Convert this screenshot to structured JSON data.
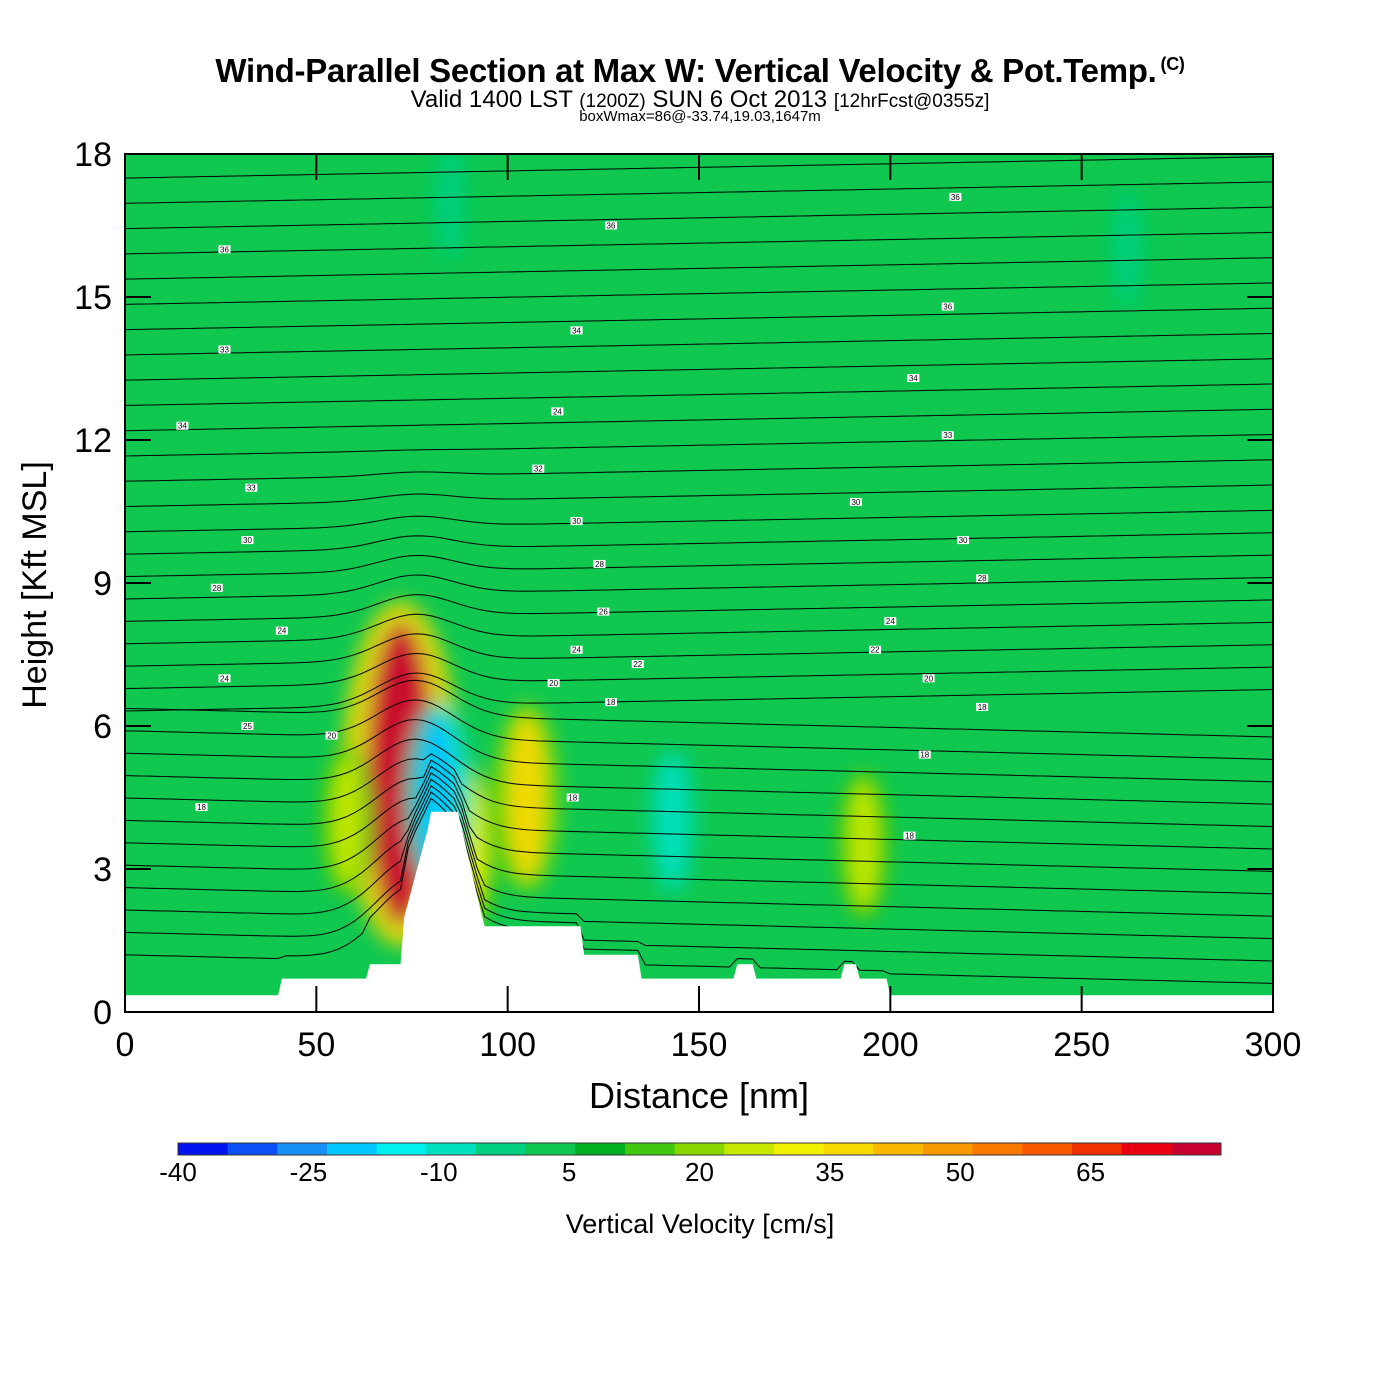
{
  "header": {
    "title": "Wind-Parallel Section at Max W: Vertical Velocity & Pot.Temp.",
    "copyright": "(C)",
    "valid_prefix": "Valid 1400 LST",
    "valid_z": "(1200Z)",
    "valid_date": "SUN 6 Oct 2013",
    "valid_fcst": "[12hrFcst@0355z]",
    "box_wmax": "boxWmax=86@-33.74,19.03,1647m"
  },
  "chart_data": {
    "type": "heatmap",
    "title": "Wind-Parallel Section at Max W: Vertical Velocity & Pot.Temp.",
    "xlabel": "Distance [nm]",
    "ylabel": "Height [Kft MSL]",
    "xlim": [
      0,
      300
    ],
    "ylim": [
      0,
      18
    ],
    "xticks": [
      0,
      50,
      100,
      150,
      200,
      250,
      300
    ],
    "yticks": [
      0,
      3,
      6,
      9,
      12,
      15,
      18
    ],
    "colorbar": {
      "label": "Vertical Velocity [cm/s]",
      "range": [
        -40,
        80
      ],
      "step": 5,
      "tick_labels": [
        "-40",
        "-25",
        "-10",
        "5",
        "20",
        "35",
        "50",
        "65"
      ],
      "colors": [
        "#0014f0",
        "#0a50f5",
        "#1890f8",
        "#00c8ff",
        "#00f0f0",
        "#00e0c0",
        "#00d080",
        "#10c850",
        "#00b020",
        "#40c810",
        "#88d800",
        "#c8e800",
        "#f0f000",
        "#f8d800",
        "#f8b800",
        "#f89800",
        "#f87800",
        "#f85800",
        "#f03000",
        "#e80010",
        "#c80030"
      ]
    },
    "series": [
      {
        "name": "Vertical velocity maxima (cm/s)",
        "points": [
          {
            "x": 72,
            "y": 5.0,
            "value": 65
          },
          {
            "x": 105,
            "y": 4.5,
            "value": 25
          },
          {
            "x": 90,
            "y": 3.5,
            "value": 20
          },
          {
            "x": 58,
            "y": 4.0,
            "value": 15
          },
          {
            "x": 193,
            "y": 3.5,
            "value": 15
          }
        ]
      },
      {
        "name": "Vertical velocity minima (cm/s)",
        "points": [
          {
            "x": 82,
            "y": 4.5,
            "value": -25
          },
          {
            "x": 143,
            "y": 4.0,
            "value": -15
          },
          {
            "x": 85,
            "y": 17.0,
            "value": -10
          },
          {
            "x": 262,
            "y": 16.0,
            "value": -10
          }
        ]
      }
    ],
    "contour_labels": [
      {
        "x": 26,
        "y": 16.0,
        "text": "36"
      },
      {
        "x": 26,
        "y": 13.9,
        "text": "33"
      },
      {
        "x": 15,
        "y": 12.3,
        "text": "34"
      },
      {
        "x": 33,
        "y": 11.0,
        "text": "33"
      },
      {
        "x": 32,
        "y": 9.9,
        "text": "30"
      },
      {
        "x": 24,
        "y": 8.9,
        "text": "28"
      },
      {
        "x": 41,
        "y": 8.0,
        "text": "24"
      },
      {
        "x": 26,
        "y": 7.0,
        "text": "24"
      },
      {
        "x": 32,
        "y": 6.0,
        "text": "25"
      },
      {
        "x": 54,
        "y": 5.8,
        "text": "20"
      },
      {
        "x": 20,
        "y": 4.3,
        "text": "18"
      },
      {
        "x": 127,
        "y": 16.5,
        "text": "36"
      },
      {
        "x": 118,
        "y": 14.3,
        "text": "34"
      },
      {
        "x": 113,
        "y": 12.6,
        "text": "24"
      },
      {
        "x": 108,
        "y": 11.4,
        "text": "32"
      },
      {
        "x": 118,
        "y": 10.3,
        "text": "30"
      },
      {
        "x": 124,
        "y": 9.4,
        "text": "28"
      },
      {
        "x": 125,
        "y": 8.4,
        "text": "26"
      },
      {
        "x": 118,
        "y": 7.6,
        "text": "24"
      },
      {
        "x": 134,
        "y": 7.3,
        "text": "22"
      },
      {
        "x": 112,
        "y": 6.9,
        "text": "20"
      },
      {
        "x": 127,
        "y": 6.5,
        "text": "18"
      },
      {
        "x": 117,
        "y": 4.5,
        "text": "18"
      },
      {
        "x": 217,
        "y": 17.1,
        "text": "36"
      },
      {
        "x": 215,
        "y": 14.8,
        "text": "36"
      },
      {
        "x": 206,
        "y": 13.3,
        "text": "34"
      },
      {
        "x": 215,
        "y": 12.1,
        "text": "33"
      },
      {
        "x": 191,
        "y": 10.7,
        "text": "30"
      },
      {
        "x": 219,
        "y": 9.9,
        "text": "30"
      },
      {
        "x": 224,
        "y": 9.1,
        "text": "28"
      },
      {
        "x": 200,
        "y": 8.2,
        "text": "24"
      },
      {
        "x": 196,
        "y": 7.6,
        "text": "22"
      },
      {
        "x": 210,
        "y": 7.0,
        "text": "20"
      },
      {
        "x": 224,
        "y": 6.4,
        "text": "18"
      },
      {
        "x": 209,
        "y": 5.4,
        "text": "18"
      },
      {
        "x": 205,
        "y": 3.7,
        "text": "18"
      }
    ]
  }
}
